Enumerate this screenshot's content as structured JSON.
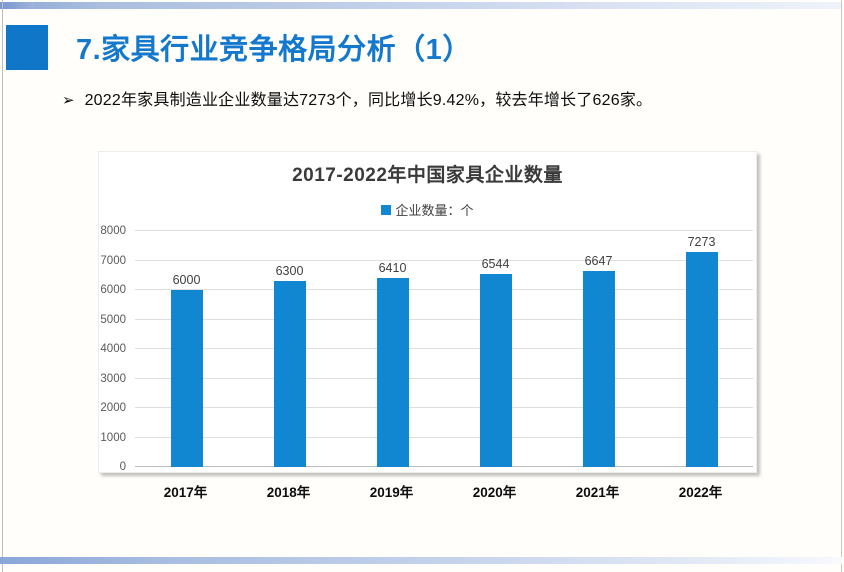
{
  "slide": {
    "title": "7.家具行业竞争格局分析（1）",
    "bullet_marker": "➢",
    "bullet_text": "2022年家具制造业企业数量达7273个，同比增长9.42%，较去年增长了626家。"
  },
  "colors": {
    "accent_blue": "#0f76c8",
    "title_blue": "#1478cd",
    "bar_blue": "#1287d1",
    "gridline": "#dedede",
    "top_bar_blue": "#aabede",
    "bottom_bar_blue": "#a9bde1"
  },
  "chart_data": {
    "type": "bar",
    "title": "2017-2022年中国家具企业数量",
    "legend": [
      "企业数量：个"
    ],
    "legend_position": "top",
    "categories": [
      "2017年",
      "2018年",
      "2019年",
      "2020年",
      "2021年",
      "2022年"
    ],
    "values": [
      6000,
      6300,
      6410,
      6544,
      6647,
      7273
    ],
    "xlabel": "",
    "ylabel": "",
    "ylim": [
      0,
      8000
    ],
    "ytick_step": 1000,
    "grid": true,
    "bar_color": "#1287d1"
  }
}
